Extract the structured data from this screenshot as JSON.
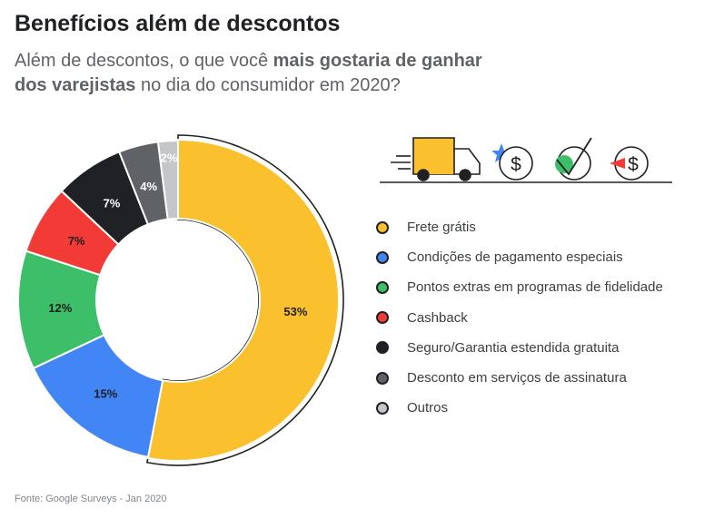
{
  "title": "Benefícios além de descontos",
  "subtitle": {
    "part1": "Além de descontos, o que você ",
    "bold1": "mais gostaria de ganhar",
    "bold2": "dos varejistas",
    "part2": " no dia do consumidor em 2020?"
  },
  "source": "Fonte: Google Surveys - Jan 2020",
  "chart_data": {
    "type": "pie",
    "variant": "donut",
    "title": "Benefícios além de descontos",
    "legend_position": "right",
    "series": [
      {
        "name": "Frete grátis",
        "value": 53,
        "label": "53%",
        "color": "#fbc02d",
        "text_color": "#202124"
      },
      {
        "name": "Condições de pagamento especiais",
        "value": 15,
        "label": "15%",
        "color": "#4285f4",
        "text_color": "#202124"
      },
      {
        "name": "Pontos extras em programas de fidelidade",
        "value": 12,
        "label": "12%",
        "color": "#3dbf6a",
        "text_color": "#202124"
      },
      {
        "name": "Cashback",
        "value": 7,
        "label": "7%",
        "color": "#f23b36",
        "text_color": "#202124"
      },
      {
        "name": "Seguro/Garantia estendida gratuita",
        "value": 7,
        "label": "7%",
        "color": "#202124",
        "text_color": "#ffffff"
      },
      {
        "name": "Desconto em serviços de assinatura",
        "value": 4,
        "label": "4%",
        "color": "#5f6368",
        "text_color": "#ffffff"
      },
      {
        "name": "Outros",
        "value": 2,
        "label": "2%",
        "color": "#c4c6c9",
        "text_color": "#ffffff"
      }
    ]
  },
  "icons": [
    "delivery-truck-icon",
    "star-icon",
    "dollar-coin-icon",
    "checkmark-icon",
    "dollar-coin-icon"
  ],
  "colors": {
    "star": "#4285f4",
    "check_circle": "#3dbf6a",
    "red_triangle": "#f23b36",
    "stroke": "#202124"
  }
}
